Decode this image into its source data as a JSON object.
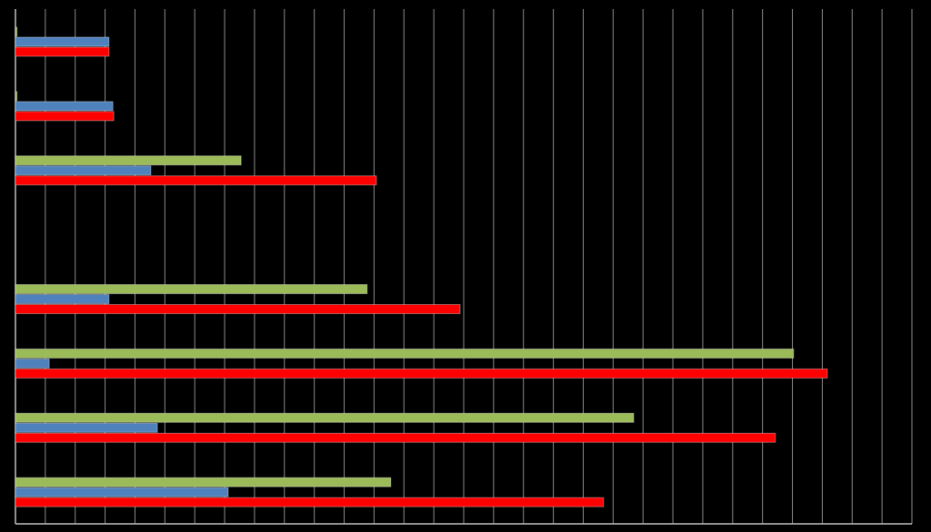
{
  "chart_data": {
    "type": "bar",
    "orientation": "horizontal",
    "categories": [
      null,
      null,
      null,
      null,
      null,
      null,
      null,
      null
    ],
    "series": [
      {
        "color": "#9bbb59",
        "values": [
          0.05,
          0.05,
          7.55,
          null,
          11.77,
          26.04,
          20.69,
          12.56
        ]
      },
      {
        "color": "#4f81bd",
        "values": [
          3.13,
          3.26,
          4.53,
          null,
          3.13,
          1.13,
          4.75,
          7.12
        ]
      },
      {
        "color": "#ff0000",
        "values": [
          3.13,
          3.29,
          12.08,
          null,
          14.88,
          27.17,
          25.43,
          19.68
        ]
      }
    ],
    "xlim": [
      0,
      30
    ],
    "xticks": [
      0,
      1,
      2,
      3,
      4,
      5,
      6,
      7,
      8,
      9,
      10,
      11,
      12,
      13,
      14,
      15,
      16,
      17,
      18,
      19,
      20,
      21,
      22,
      23,
      24,
      25,
      26,
      27,
      28,
      29,
      30
    ],
    "grid": true
  }
}
